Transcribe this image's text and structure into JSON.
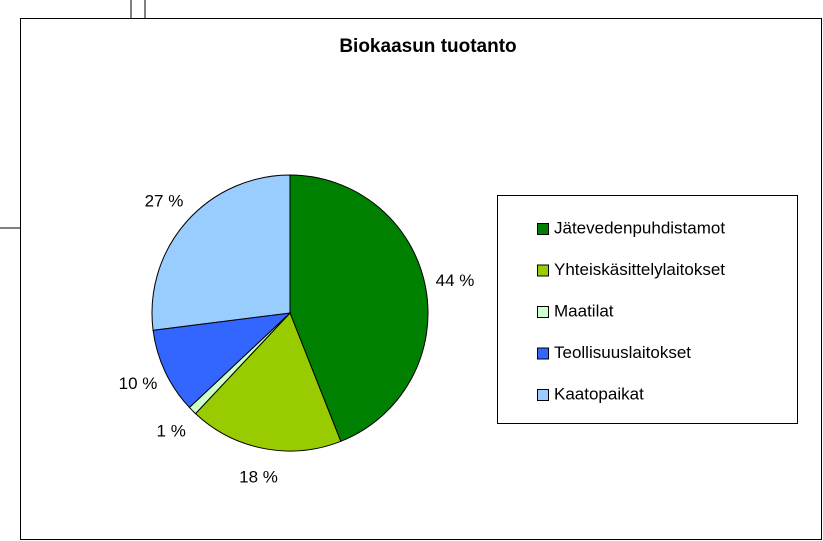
{
  "chart_data": {
    "type": "pie",
    "title": "Biokaasun tuotanto",
    "categories": [
      "Jätevedenpuhdistamot",
      "Yhteiskäsittelylaitokset",
      "Maatilat",
      "Teollisuuslaitokset",
      "Kaatopaikat"
    ],
    "values": [
      44,
      18,
      1,
      10,
      27
    ],
    "value_labels": [
      "44 %",
      "18 %",
      "1 %",
      "10 %",
      "27 %"
    ],
    "colors": [
      "#008000",
      "#99cc00",
      "#ccffcc",
      "#3366ff",
      "#99ccff"
    ],
    "legend": "right"
  }
}
